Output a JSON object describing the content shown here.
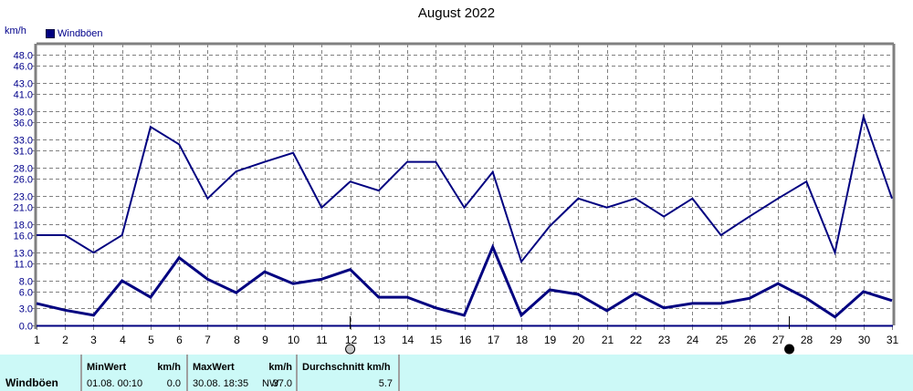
{
  "header": {
    "title": "August 2022",
    "unit_label": "km/h",
    "legend": [
      {
        "label": "Windböen",
        "color": "#000080"
      }
    ]
  },
  "chart_data": {
    "type": "line",
    "title": "August 2022",
    "xlabel": "",
    "ylabel": "km/h",
    "ylim": [
      0,
      48
    ],
    "grid": true,
    "legend_position": "top-left",
    "x": [
      1,
      2,
      3,
      4,
      5,
      6,
      7,
      8,
      9,
      10,
      11,
      12,
      13,
      14,
      15,
      16,
      17,
      18,
      19,
      20,
      21,
      22,
      23,
      24,
      25,
      26,
      27,
      28,
      29,
      30,
      31
    ],
    "y_ticks": [
      0.0,
      3.0,
      6.0,
      8.0,
      11.0,
      13.0,
      16.0,
      18.0,
      21.0,
      23.0,
      26.0,
      28.0,
      31.0,
      33.0,
      36.0,
      38.0,
      41.0,
      43.0,
      46.0,
      48.0
    ],
    "y_tick_labels": [
      "0.0",
      "3.0",
      "6.0",
      "8.0",
      "11.0",
      "13.0",
      "16.0",
      "18.0",
      "21.0",
      "23.0",
      "26.0",
      "28.0",
      "31.0",
      "33.0",
      "36.0",
      "38.0",
      "41.0",
      "43.0",
      "46.0",
      "48.0"
    ],
    "series": [
      {
        "name": "Windböen (max)",
        "color": "#000080",
        "width": 2,
        "values": [
          16.0,
          16.0,
          12.9,
          16.0,
          35.2,
          32.1,
          22.5,
          27.3,
          29.0,
          30.6,
          20.9,
          25.5,
          23.9,
          29.0,
          29.0,
          20.9,
          27.2,
          11.3,
          17.6,
          22.5,
          20.9,
          22.5,
          19.3,
          22.5,
          16.0,
          19.3,
          22.5,
          25.5,
          12.9,
          37.0,
          22.5
        ]
      },
      {
        "name": "Windböen (Durchschnitt)",
        "color": "#000080",
        "width": 3,
        "values": [
          3.9,
          2.7,
          1.8,
          7.9,
          5.0,
          12.0,
          8.2,
          5.8,
          9.5,
          7.4,
          8.2,
          9.9,
          5.0,
          5.0,
          3.1,
          1.8,
          13.9,
          1.8,
          6.3,
          5.5,
          2.6,
          5.7,
          3.1,
          3.9,
          3.9,
          4.8,
          7.4,
          4.8,
          1.5,
          6.0,
          4.4
        ]
      }
    ],
    "annotations": [
      {
        "type": "full-moon",
        "x": 12,
        "label": "full moon"
      },
      {
        "type": "new-moon",
        "x": 27.4,
        "label": "new moon"
      }
    ]
  },
  "info_table": {
    "row_label": "Windböen",
    "min": {
      "header": "MinWert",
      "unit": "km/h",
      "time": "01.08.  00:10",
      "value": "0.0"
    },
    "max": {
      "header": "MaxWert",
      "unit": "km/h",
      "time": "30.08.  18:35",
      "direction": "NW",
      "value": "37.0"
    },
    "avg": {
      "header": "Durchschnitt km/h",
      "value": "5.7"
    }
  }
}
